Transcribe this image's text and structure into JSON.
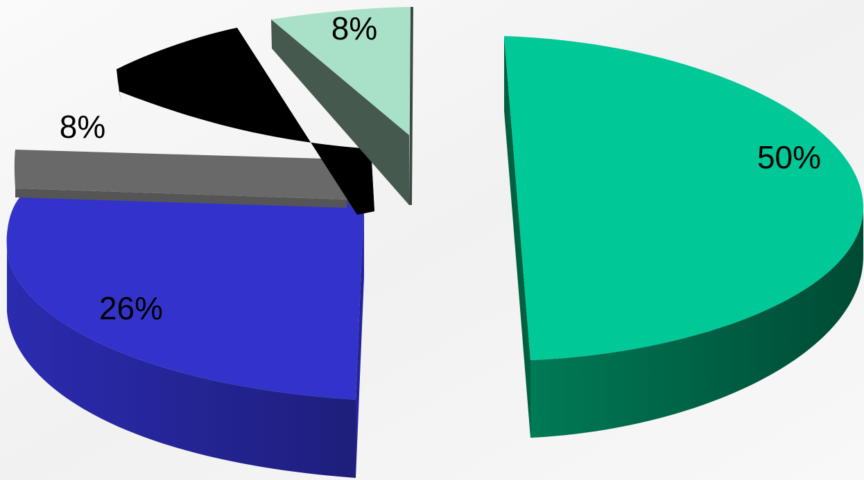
{
  "chart_data": {
    "type": "pie",
    "style": "3d-exploded",
    "slices": [
      {
        "value": 50,
        "label": "50%",
        "color": "#00c896",
        "side_color": "#00573d"
      },
      {
        "value": 26,
        "label": "26%",
        "color": "#3333cc",
        "side_color": "#22228a"
      },
      {
        "value": 8,
        "label": "8%",
        "color": "#696969",
        "side_color": "#4a4a4a"
      },
      {
        "value": 8,
        "label": "",
        "color": "#000000",
        "side_color": "#000000"
      },
      {
        "value": 8,
        "label": "8%",
        "color": "#a8e0c8",
        "side_color": "#485a50"
      }
    ]
  }
}
